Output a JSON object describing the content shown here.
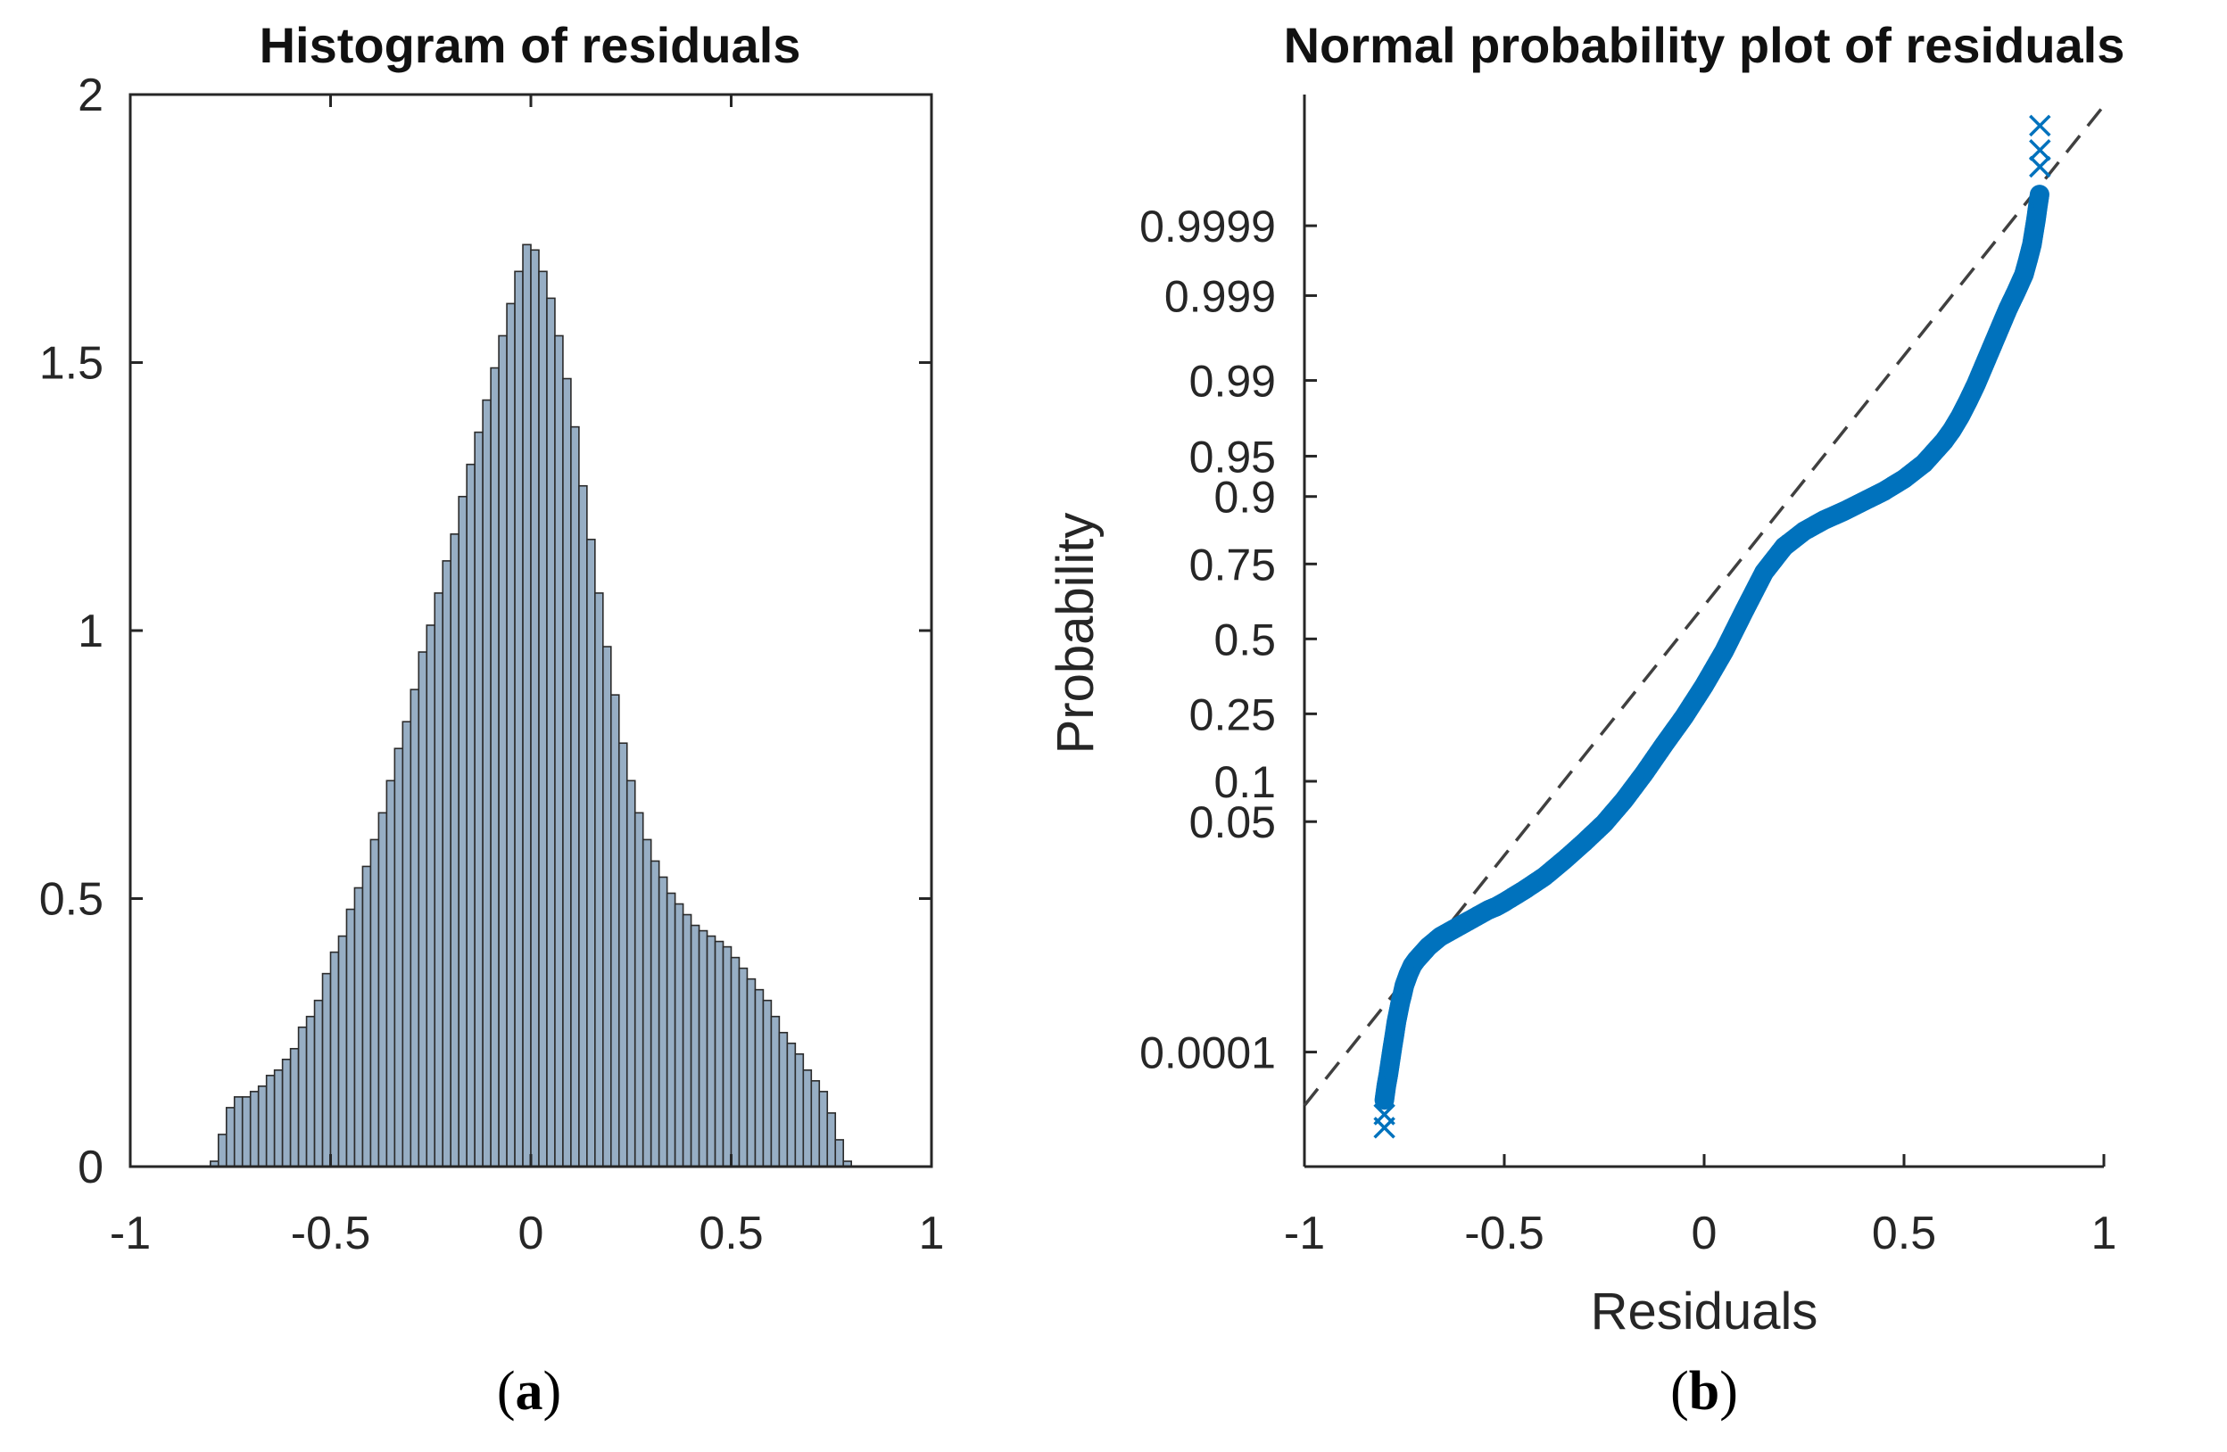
{
  "chart_data": [
    {
      "id": "a",
      "type": "bar",
      "subtype": "histogram",
      "title": "Histogram of residuals",
      "xlabel": "",
      "ylabel": "",
      "xlim": [
        -1,
        1
      ],
      "ylim": [
        0,
        2
      ],
      "xticks": [
        "-1",
        "-0.5",
        "0",
        "0.5",
        "1"
      ],
      "yticks": [
        "0",
        "0.5",
        "1",
        "1.5",
        "2"
      ],
      "bar_color": "#97aec4",
      "edge_color": "#2b2b2b",
      "bin_width": 0.02,
      "bin_centers": [
        -0.79,
        -0.77,
        -0.75,
        -0.73,
        -0.71,
        -0.69,
        -0.67,
        -0.65,
        -0.63,
        -0.61,
        -0.59,
        -0.57,
        -0.55,
        -0.53,
        -0.51,
        -0.49,
        -0.47,
        -0.45,
        -0.43,
        -0.41,
        -0.39,
        -0.37,
        -0.35,
        -0.33,
        -0.31,
        -0.29,
        -0.27,
        -0.25,
        -0.23,
        -0.21,
        -0.19,
        -0.17,
        -0.15,
        -0.13,
        -0.11,
        -0.09,
        -0.07,
        -0.05,
        -0.03,
        -0.01,
        0.01,
        0.03,
        0.05,
        0.07,
        0.09,
        0.11,
        0.13,
        0.15,
        0.17,
        0.19,
        0.21,
        0.23,
        0.25,
        0.27,
        0.29,
        0.31,
        0.33,
        0.35,
        0.37,
        0.39,
        0.41,
        0.43,
        0.45,
        0.47,
        0.49,
        0.51,
        0.53,
        0.55,
        0.57,
        0.59,
        0.61,
        0.63,
        0.65,
        0.67,
        0.69,
        0.71,
        0.73,
        0.75,
        0.77,
        0.79
      ],
      "values": [
        0.01,
        0.06,
        0.11,
        0.13,
        0.13,
        0.14,
        0.15,
        0.17,
        0.18,
        0.2,
        0.22,
        0.26,
        0.28,
        0.31,
        0.36,
        0.4,
        0.43,
        0.48,
        0.52,
        0.56,
        0.61,
        0.66,
        0.72,
        0.78,
        0.83,
        0.89,
        0.96,
        1.01,
        1.07,
        1.13,
        1.18,
        1.25,
        1.31,
        1.37,
        1.43,
        1.49,
        1.55,
        1.61,
        1.67,
        1.72,
        1.71,
        1.67,
        1.62,
        1.55,
        1.47,
        1.38,
        1.27,
        1.17,
        1.07,
        0.97,
        0.88,
        0.79,
        0.72,
        0.66,
        0.61,
        0.57,
        0.54,
        0.51,
        0.49,
        0.47,
        0.45,
        0.44,
        0.43,
        0.42,
        0.41,
        0.39,
        0.37,
        0.35,
        0.33,
        0.31,
        0.28,
        0.25,
        0.23,
        0.21,
        0.18,
        0.16,
        0.14,
        0.1,
        0.05,
        0.01
      ]
    },
    {
      "id": "b",
      "type": "scatter",
      "subtype": "normal-probability",
      "title": "Normal probability plot of residuals",
      "xlabel": "Residuals",
      "ylabel": "Probability",
      "xlim": [
        -1,
        1
      ],
      "xticks": [
        "-1",
        "-0.5",
        "0",
        "0.5",
        "1"
      ],
      "ytick_labels": [
        "0.0001",
        "0.05",
        "0.1",
        "0.25",
        "0.5",
        "0.75",
        "0.9",
        "0.95",
        "0.99",
        "0.999",
        "0.9999"
      ],
      "ytick_values": [
        0.0001,
        0.05,
        0.1,
        0.25,
        0.5,
        0.75,
        0.9,
        0.95,
        0.99,
        0.999,
        0.9999
      ],
      "ylim_z": [
        -4.75,
        4.9
      ],
      "marker_color": "#0072bd",
      "reference_line_color": "#404040",
      "reference_line": {
        "x": [
          -1,
          1
        ],
        "z": [
          -4.2,
          4.8
        ]
      },
      "curve_residuals": [
        -0.8,
        -0.795,
        -0.79,
        -0.785,
        -0.78,
        -0.775,
        -0.77,
        -0.765,
        -0.76,
        -0.755,
        -0.75,
        -0.745,
        -0.74,
        -0.73,
        -0.72,
        -0.71,
        -0.7,
        -0.69,
        -0.68,
        -0.66,
        -0.64,
        -0.62,
        -0.6,
        -0.58,
        -0.56,
        -0.54,
        -0.52,
        -0.5,
        -0.45,
        -0.4,
        -0.35,
        -0.3,
        -0.25,
        -0.2,
        -0.15,
        -0.1,
        -0.05,
        0.0,
        0.05,
        0.1,
        0.15,
        0.2,
        0.25,
        0.3,
        0.35,
        0.4,
        0.45,
        0.5,
        0.55,
        0.6,
        0.62,
        0.64,
        0.66,
        0.68,
        0.7,
        0.72,
        0.74,
        0.76,
        0.78,
        0.8,
        0.81,
        0.82,
        0.825,
        0.83,
        0.835,
        0.84
      ],
      "curve_z": [
        -4.15,
        -4.02,
        -3.92,
        -3.8,
        -3.68,
        -3.57,
        -3.45,
        -3.36,
        -3.27,
        -3.2,
        -3.12,
        -3.07,
        -3.02,
        -2.94,
        -2.89,
        -2.85,
        -2.81,
        -2.77,
        -2.74,
        -2.68,
        -2.64,
        -2.6,
        -2.56,
        -2.52,
        -2.48,
        -2.44,
        -2.41,
        -2.37,
        -2.26,
        -2.14,
        -1.99,
        -1.83,
        -1.66,
        -1.45,
        -1.21,
        -0.95,
        -0.7,
        -0.42,
        -0.11,
        0.25,
        0.6,
        0.83,
        0.97,
        1.07,
        1.15,
        1.24,
        1.33,
        1.44,
        1.58,
        1.78,
        1.88,
        2.0,
        2.14,
        2.29,
        2.46,
        2.63,
        2.8,
        2.97,
        3.12,
        3.28,
        3.41,
        3.55,
        3.66,
        3.77,
        3.9,
        4.02
      ],
      "x_markers": [
        {
          "x": -0.8,
          "z": -4.4
        },
        {
          "x": -0.8,
          "z": -4.28
        },
        {
          "x": 0.84,
          "z": 4.62
        },
        {
          "x": 0.84,
          "z": 4.4
        },
        {
          "x": 0.84,
          "z": 4.25
        }
      ]
    }
  ],
  "panel_labels": [
    "a",
    "b"
  ]
}
